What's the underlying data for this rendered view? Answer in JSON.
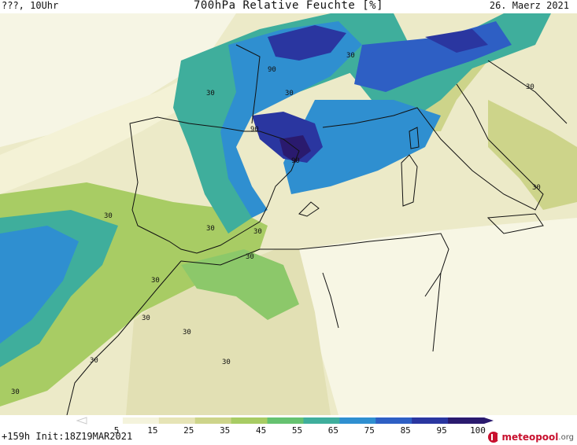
{
  "header": {
    "location": "???, 10Uhr",
    "title": "700hPa Relative Feuchte [%]",
    "date": "26. Maerz 2021"
  },
  "footer": {
    "run": "+159h  Init:18Z19MAR2021"
  },
  "logo": {
    "text_main": "meteopool",
    "text_suffix": ".org"
  },
  "legend": {
    "ticks": [
      "5",
      "15",
      "25",
      "35",
      "45",
      "55",
      "65",
      "75",
      "85",
      "95",
      "100"
    ],
    "colors": [
      "#ffffff",
      "#f4f3dc",
      "#e6e4b6",
      "#cdd48a",
      "#a8cc64",
      "#66c270",
      "#3fae9c",
      "#2f8fd0",
      "#2e5fc4",
      "#2a36a0",
      "#2a1a6e"
    ]
  },
  "contour_labels": [
    {
      "text": "90"
    },
    {
      "text": "90"
    },
    {
      "text": "90"
    },
    {
      "text": "30"
    },
    {
      "text": "30"
    },
    {
      "text": "30"
    },
    {
      "text": "30"
    },
    {
      "text": "30"
    },
    {
      "text": "30"
    },
    {
      "text": "30"
    },
    {
      "text": "30"
    },
    {
      "text": "30"
    },
    {
      "text": "30"
    },
    {
      "text": "30"
    },
    {
      "text": "30"
    },
    {
      "text": "30"
    },
    {
      "text": "30"
    },
    {
      "text": "30"
    }
  ]
}
